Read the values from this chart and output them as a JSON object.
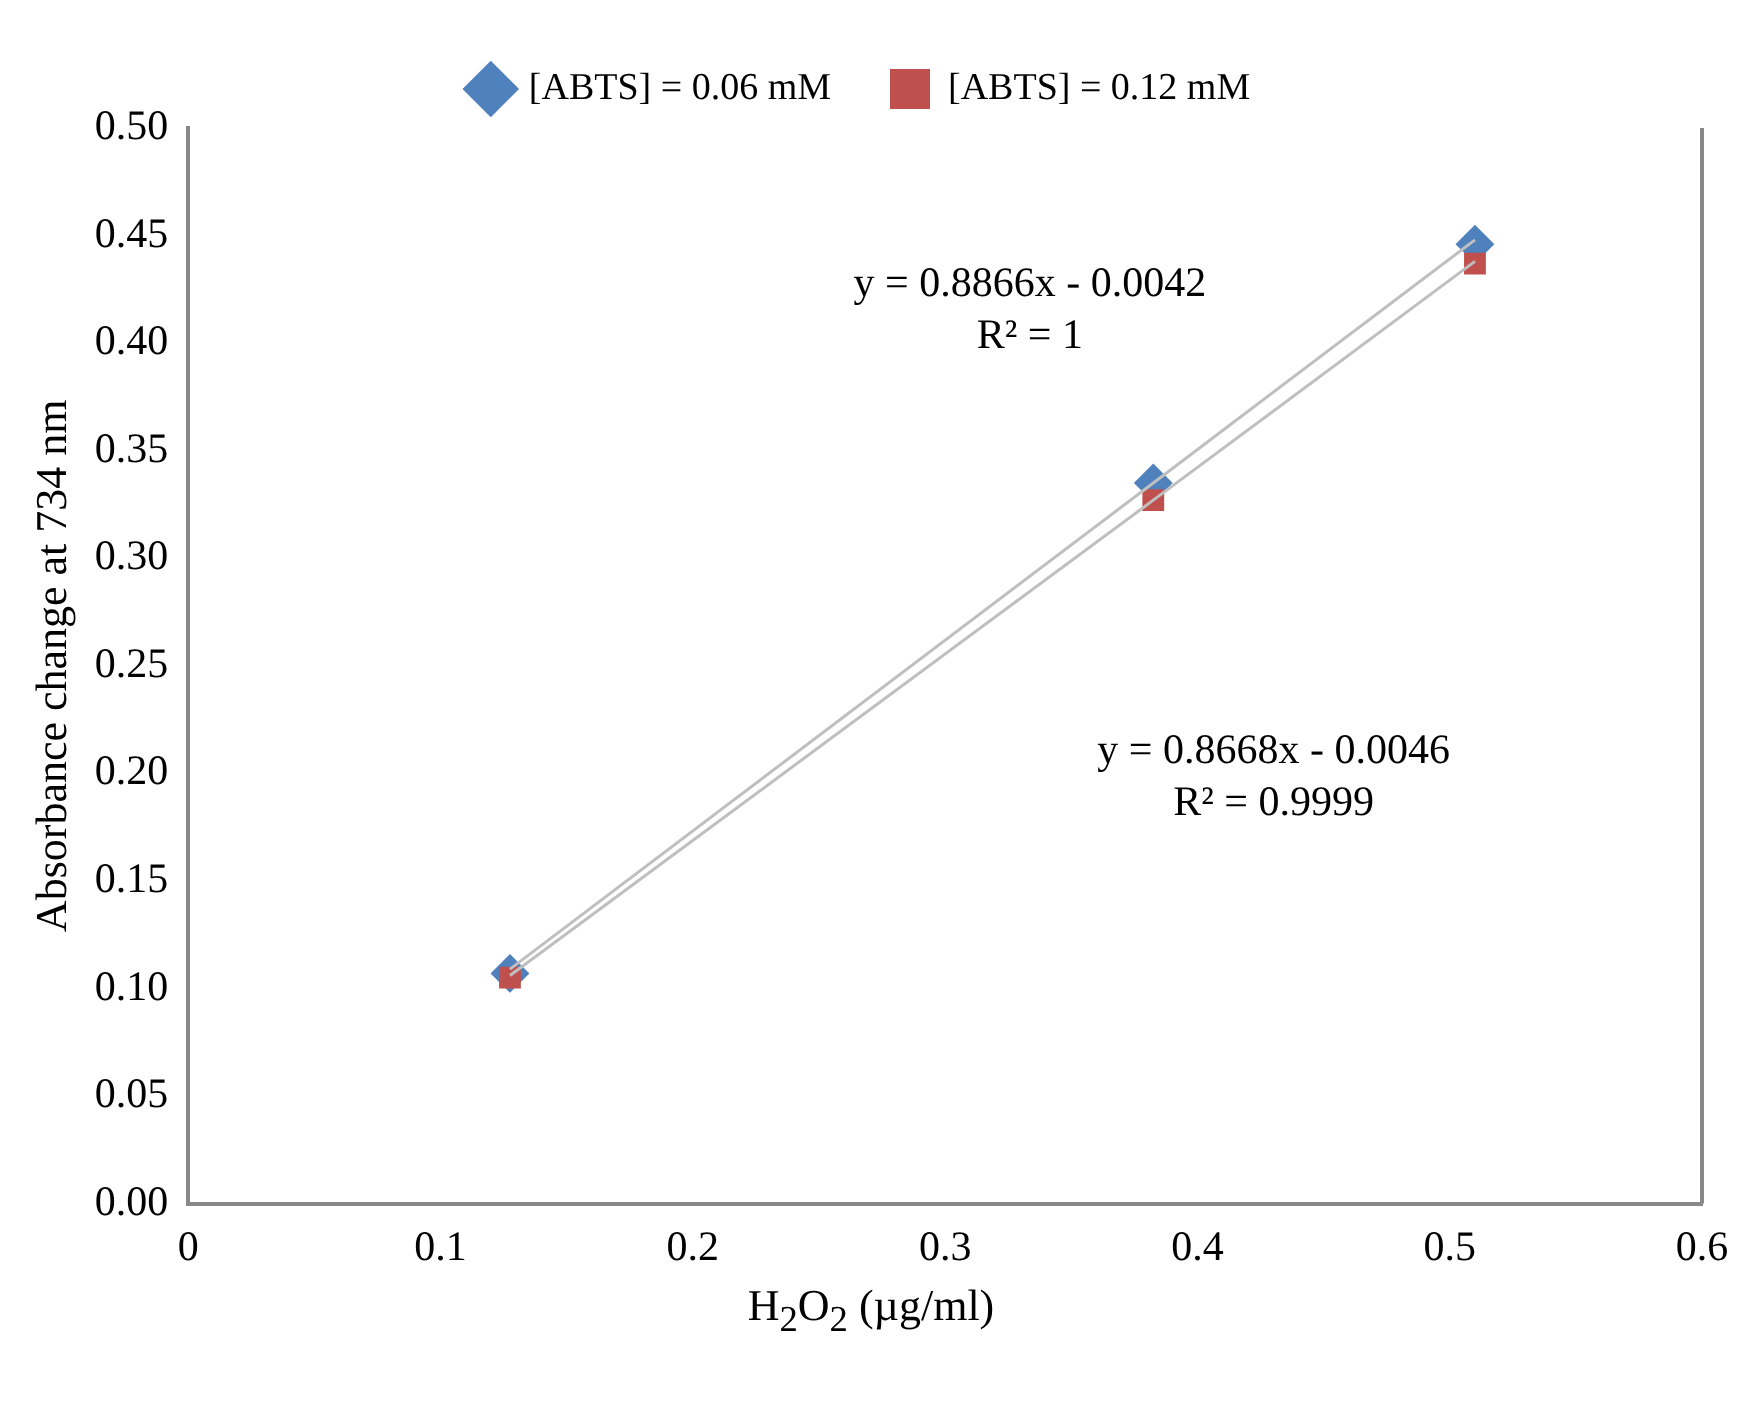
{
  "chart_data": {
    "type": "scatter",
    "xlabel": "H$_{2}$O$_{2}$ (µg/ml)",
    "ylabel": "Absorbance change at 734 nm",
    "x": [
      0.1275,
      0.3825,
      0.51
    ],
    "series": [
      {
        "name": "[ABTS] = 0.06 mM",
        "color": "#4f81bd",
        "marker": "diamond",
        "values": [
          0.107,
          0.335,
          0.446
        ]
      },
      {
        "name": "[ABTS] = 0.12 mM",
        "color": "#c0504d",
        "marker": "square",
        "values": [
          0.105,
          0.327,
          0.437
        ]
      },
      {
        "type": "line",
        "color": "#bfbfbf",
        "marker": "none",
        "values": [
          0.109,
          0.335,
          0.448
        ]
      },
      {
        "type": "line",
        "color": "#bfbfbf",
        "marker": "none",
        "values": [
          0.106,
          0.327,
          0.438
        ]
      }
    ],
    "annotations": [
      "y = 0.8866x - 0.0042\nR² = 1",
      "y = 0.8668x - 0.0046\nR² = 0.9999"
    ],
    "xlim": [
      0,
      0.6
    ],
    "xticks": [
      0,
      0.1,
      0.2,
      0.3,
      0.4,
      0.5,
      0.6
    ],
    "ylim": [
      0,
      0.5
    ],
    "yticks": [
      {
        "value": 0,
        "label": "0.00"
      },
      {
        "value": 0.05,
        "label": "0.05"
      },
      {
        "value": 0.1,
        "label": "0.10"
      },
      {
        "value": 0.15,
        "label": "0.15"
      },
      {
        "value": 0.2,
        "label": "0.20"
      },
      {
        "value": 0.25,
        "label": "0.25"
      },
      {
        "value": 0.3,
        "label": "0.30"
      },
      {
        "value": 0.35,
        "label": "0.35"
      },
      {
        "value": 0.4,
        "label": "0.40"
      },
      {
        "value": 0.45,
        "label": "0.45"
      },
      {
        "value": 0.5,
        "label": "0.50"
      }
    ],
    "grid": false,
    "legend": "top"
  }
}
